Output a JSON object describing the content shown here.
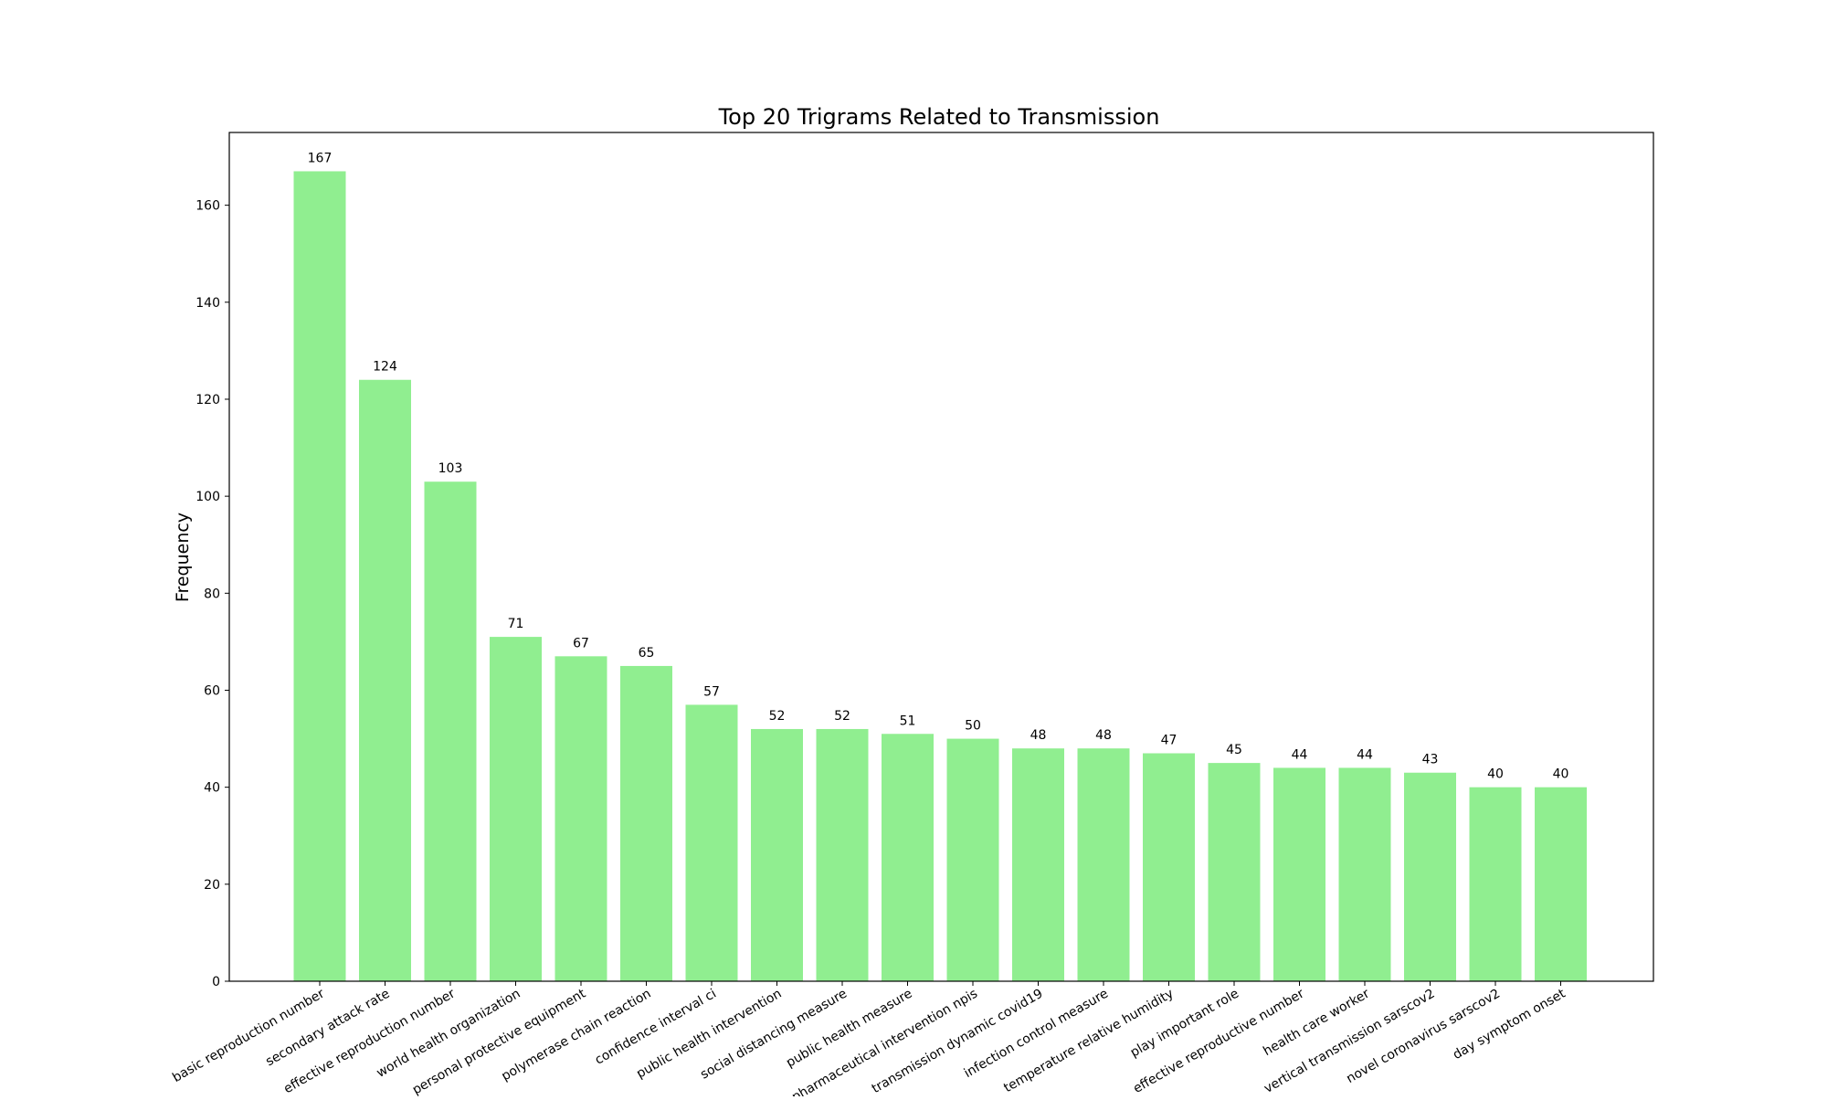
{
  "chart_data": {
    "type": "bar",
    "title": "Top 20 Trigrams Related to Transmission",
    "xlabel": "",
    "ylabel": "Frequency",
    "ylim": [
      0,
      175
    ],
    "yticks": [
      0,
      20,
      40,
      60,
      80,
      100,
      120,
      140,
      160
    ],
    "grid": false,
    "bar_color": "#90ee90",
    "categories": [
      "basic reproduction number",
      "secondary attack rate",
      "effective reproduction number",
      "world health organization",
      "personal protective equipment",
      "polymerase chain reaction",
      "confidence interval ci",
      "public health intervention",
      "social distancing measure",
      "public health measure",
      "nonpharmaceutical intervention npis",
      "transmission dynamic covid19",
      "infection control measure",
      "temperature relative humidity",
      "play important role",
      "effective reproductive number",
      "health care worker",
      "vertical transmission sarscov2",
      "novel coronavirus sarscov2",
      "day symptom onset"
    ],
    "values": [
      167,
      124,
      103,
      71,
      67,
      65,
      57,
      52,
      52,
      51,
      50,
      48,
      48,
      47,
      45,
      44,
      44,
      43,
      40,
      40
    ]
  }
}
